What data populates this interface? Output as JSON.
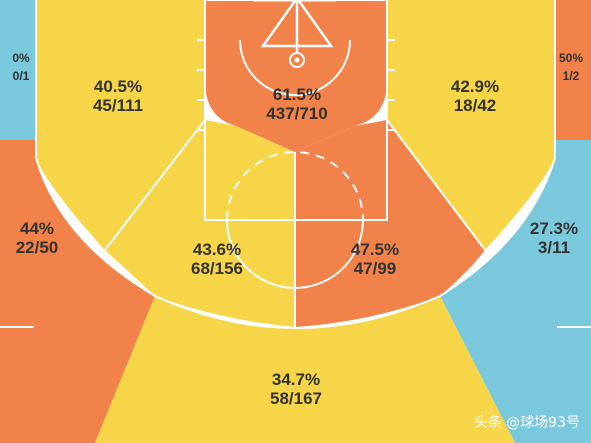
{
  "chart_data": {
    "type": "heatmap",
    "title": "",
    "zones": [
      {
        "id": "left-corner-three",
        "pct": "0%",
        "made_attempts": "0/1",
        "made": 0,
        "attempts": 1,
        "color": "#7ac8dc"
      },
      {
        "id": "right-corner-three",
        "pct": "50%",
        "made_attempts": "1/2",
        "made": 1,
        "attempts": 2,
        "color": "#f0824a"
      },
      {
        "id": "left-baseline-midrange",
        "pct": "40.5%",
        "made_attempts": "45/111",
        "made": 45,
        "attempts": 111,
        "color": "#f7d548"
      },
      {
        "id": "restricted-area",
        "pct": "61.5%",
        "made_attempts": "437/710",
        "made": 437,
        "attempts": 710,
        "color": "#f0824a"
      },
      {
        "id": "right-baseline-midrange",
        "pct": "42.9%",
        "made_attempts": "18/42",
        "made": 18,
        "attempts": 42,
        "color": "#f7d548"
      },
      {
        "id": "left-wing-three",
        "pct": "44%",
        "made_attempts": "22/50",
        "made": 22,
        "attempts": 50,
        "color": "#f0824a"
      },
      {
        "id": "left-elbow-midrange",
        "pct": "43.6%",
        "made_attempts": "68/156",
        "made": 68,
        "attempts": 156,
        "color": "#f7d548"
      },
      {
        "id": "right-elbow-midrange",
        "pct": "47.5%",
        "made_attempts": "47/99",
        "made": 47,
        "attempts": 99,
        "color": "#f0824a"
      },
      {
        "id": "right-wing-three",
        "pct": "27.3%",
        "made_attempts": "3/11",
        "made": 3,
        "attempts": 11,
        "color": "#7ac8dc"
      },
      {
        "id": "top-key-three",
        "pct": "34.7%",
        "made_attempts": "58/167",
        "made": 58,
        "attempts": 167,
        "color": "#f7d548"
      }
    ]
  },
  "watermark": "头条 @球场93号"
}
